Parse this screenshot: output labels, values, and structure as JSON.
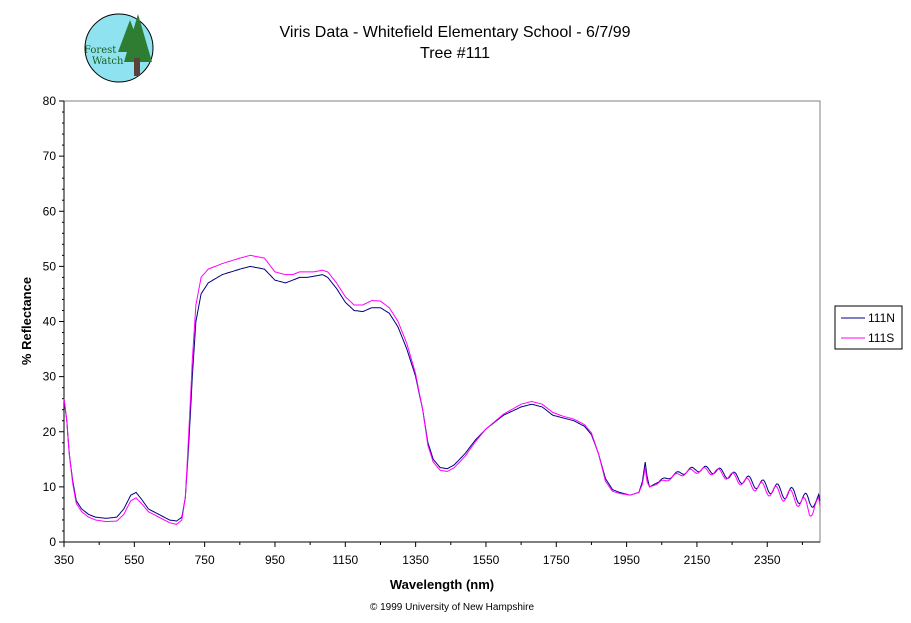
{
  "logo": {
    "line1": "Forest",
    "line2": "Watch",
    "colors": {
      "sky": "#8fe3f0",
      "tree": "#2e7d32",
      "trunk": "#5d4037",
      "text": "#1b5e20"
    }
  },
  "chart_data": {
    "type": "line",
    "title": "Viris Data - Whitefield Elementary School - 6/7/99",
    "subtitle": "Tree #111",
    "xlabel": "Wavelength (nm)",
    "ylabel": "% Reflectance",
    "xlim": [
      350,
      2500
    ],
    "ylim": [
      0,
      80
    ],
    "x_ticks": [
      350,
      550,
      750,
      950,
      1150,
      1350,
      1550,
      1750,
      1950,
      2150,
      2350
    ],
    "y_ticks": [
      0,
      10,
      20,
      30,
      40,
      50,
      60,
      70,
      80
    ],
    "grid": false,
    "legend_position": "right",
    "series": [
      {
        "name": "111N",
        "color": "#000080",
        "points": [
          [
            350,
            26
          ],
          [
            358,
            22
          ],
          [
            365,
            16
          ],
          [
            375,
            11
          ],
          [
            385,
            7.5
          ],
          [
            400,
            6
          ],
          [
            420,
            5
          ],
          [
            440,
            4.5
          ],
          [
            470,
            4.3
          ],
          [
            500,
            4.5
          ],
          [
            520,
            6
          ],
          [
            540,
            8.5
          ],
          [
            555,
            9
          ],
          [
            570,
            7.8
          ],
          [
            590,
            6
          ],
          [
            620,
            5
          ],
          [
            650,
            4
          ],
          [
            670,
            3.8
          ],
          [
            685,
            4.5
          ],
          [
            695,
            8
          ],
          [
            705,
            18
          ],
          [
            715,
            30
          ],
          [
            725,
            40
          ],
          [
            740,
            45
          ],
          [
            760,
            47
          ],
          [
            800,
            48.5
          ],
          [
            850,
            49.5
          ],
          [
            880,
            50
          ],
          [
            920,
            49.5
          ],
          [
            950,
            47.5
          ],
          [
            980,
            47
          ],
          [
            1000,
            47.5
          ],
          [
            1020,
            48
          ],
          [
            1040,
            48
          ],
          [
            1060,
            48.2
          ],
          [
            1085,
            48.5
          ],
          [
            1100,
            48
          ],
          [
            1125,
            46
          ],
          [
            1150,
            43.5
          ],
          [
            1175,
            42
          ],
          [
            1200,
            41.8
          ],
          [
            1225,
            42.5
          ],
          [
            1250,
            42.5
          ],
          [
            1275,
            41.5
          ],
          [
            1300,
            39
          ],
          [
            1325,
            35
          ],
          [
            1350,
            30
          ],
          [
            1370,
            24
          ],
          [
            1385,
            18
          ],
          [
            1400,
            15
          ],
          [
            1420,
            13.5
          ],
          [
            1440,
            13.3
          ],
          [
            1460,
            14
          ],
          [
            1490,
            16
          ],
          [
            1520,
            18.5
          ],
          [
            1550,
            20.5
          ],
          [
            1600,
            23
          ],
          [
            1650,
            24.5
          ],
          [
            1680,
            25
          ],
          [
            1710,
            24.5
          ],
          [
            1740,
            23
          ],
          [
            1770,
            22.5
          ],
          [
            1800,
            22
          ],
          [
            1830,
            21
          ],
          [
            1850,
            19.5
          ],
          [
            1870,
            16
          ],
          [
            1890,
            11.5
          ],
          [
            1910,
            9.5
          ],
          [
            1930,
            9
          ],
          [
            1960,
            8.5
          ],
          [
            1985,
            9
          ],
          [
            1995,
            11
          ],
          [
            2003,
            14.5
          ],
          [
            2008,
            12
          ],
          [
            2015,
            10
          ],
          [
            2030,
            10.5
          ],
          [
            2060,
            11.5
          ],
          [
            2100,
            12.5
          ],
          [
            2150,
            13.3
          ],
          [
            2200,
            13
          ],
          [
            2250,
            12
          ],
          [
            2300,
            11
          ],
          [
            2350,
            10
          ],
          [
            2400,
            9
          ],
          [
            2430,
            8.5
          ],
          [
            2450,
            8
          ],
          [
            2470,
            7
          ],
          [
            2485,
            8
          ],
          [
            2500,
            7.5
          ]
        ]
      },
      {
        "name": "111S",
        "color": "#ff00ff",
        "points": [
          [
            350,
            26
          ],
          [
            358,
            22
          ],
          [
            365,
            16
          ],
          [
            375,
            10.5
          ],
          [
            385,
            7
          ],
          [
            400,
            5.5
          ],
          [
            420,
            4.5
          ],
          [
            440,
            4
          ],
          [
            470,
            3.7
          ],
          [
            500,
            3.8
          ],
          [
            520,
            5
          ],
          [
            540,
            7.5
          ],
          [
            555,
            8
          ],
          [
            570,
            7
          ],
          [
            590,
            5.5
          ],
          [
            620,
            4.5
          ],
          [
            650,
            3.5
          ],
          [
            670,
            3.2
          ],
          [
            685,
            4
          ],
          [
            695,
            8
          ],
          [
            705,
            20
          ],
          [
            715,
            33
          ],
          [
            725,
            43
          ],
          [
            740,
            48
          ],
          [
            760,
            49.5
          ],
          [
            800,
            50.5
          ],
          [
            850,
            51.5
          ],
          [
            880,
            52
          ],
          [
            920,
            51.5
          ],
          [
            950,
            49
          ],
          [
            980,
            48.5
          ],
          [
            1000,
            48.5
          ],
          [
            1020,
            49
          ],
          [
            1040,
            49
          ],
          [
            1060,
            49
          ],
          [
            1085,
            49.3
          ],
          [
            1100,
            49
          ],
          [
            1125,
            47
          ],
          [
            1150,
            44.5
          ],
          [
            1175,
            43
          ],
          [
            1200,
            43
          ],
          [
            1225,
            43.8
          ],
          [
            1250,
            43.7
          ],
          [
            1275,
            42.5
          ],
          [
            1300,
            40
          ],
          [
            1325,
            36
          ],
          [
            1350,
            30.5
          ],
          [
            1370,
            24
          ],
          [
            1385,
            17.5
          ],
          [
            1400,
            14.5
          ],
          [
            1420,
            13
          ],
          [
            1440,
            12.8
          ],
          [
            1460,
            13.5
          ],
          [
            1490,
            15.5
          ],
          [
            1520,
            18.2
          ],
          [
            1550,
            20.5
          ],
          [
            1600,
            23.2
          ],
          [
            1650,
            25
          ],
          [
            1680,
            25.5
          ],
          [
            1710,
            25
          ],
          [
            1740,
            23.5
          ],
          [
            1770,
            22.8
          ],
          [
            1800,
            22.3
          ],
          [
            1830,
            21.3
          ],
          [
            1850,
            19.8
          ],
          [
            1870,
            16
          ],
          [
            1890,
            11
          ],
          [
            1910,
            9.2
          ],
          [
            1930,
            8.8
          ],
          [
            1960,
            8.5
          ],
          [
            1985,
            9
          ],
          [
            1995,
            10.5
          ],
          [
            2003,
            13.5
          ],
          [
            2008,
            11
          ],
          [
            2015,
            10
          ],
          [
            2030,
            10.3
          ],
          [
            2060,
            11.2
          ],
          [
            2100,
            12.3
          ],
          [
            2150,
            13
          ],
          [
            2200,
            12.8
          ],
          [
            2250,
            11.8
          ],
          [
            2300,
            10.5
          ],
          [
            2350,
            9.5
          ],
          [
            2400,
            8.5
          ],
          [
            2430,
            8
          ],
          [
            2450,
            7.2
          ],
          [
            2470,
            5.5
          ],
          [
            2485,
            7
          ],
          [
            2500,
            6.5
          ]
        ]
      }
    ],
    "copyright": "© 1999 University of New Hampshire"
  }
}
